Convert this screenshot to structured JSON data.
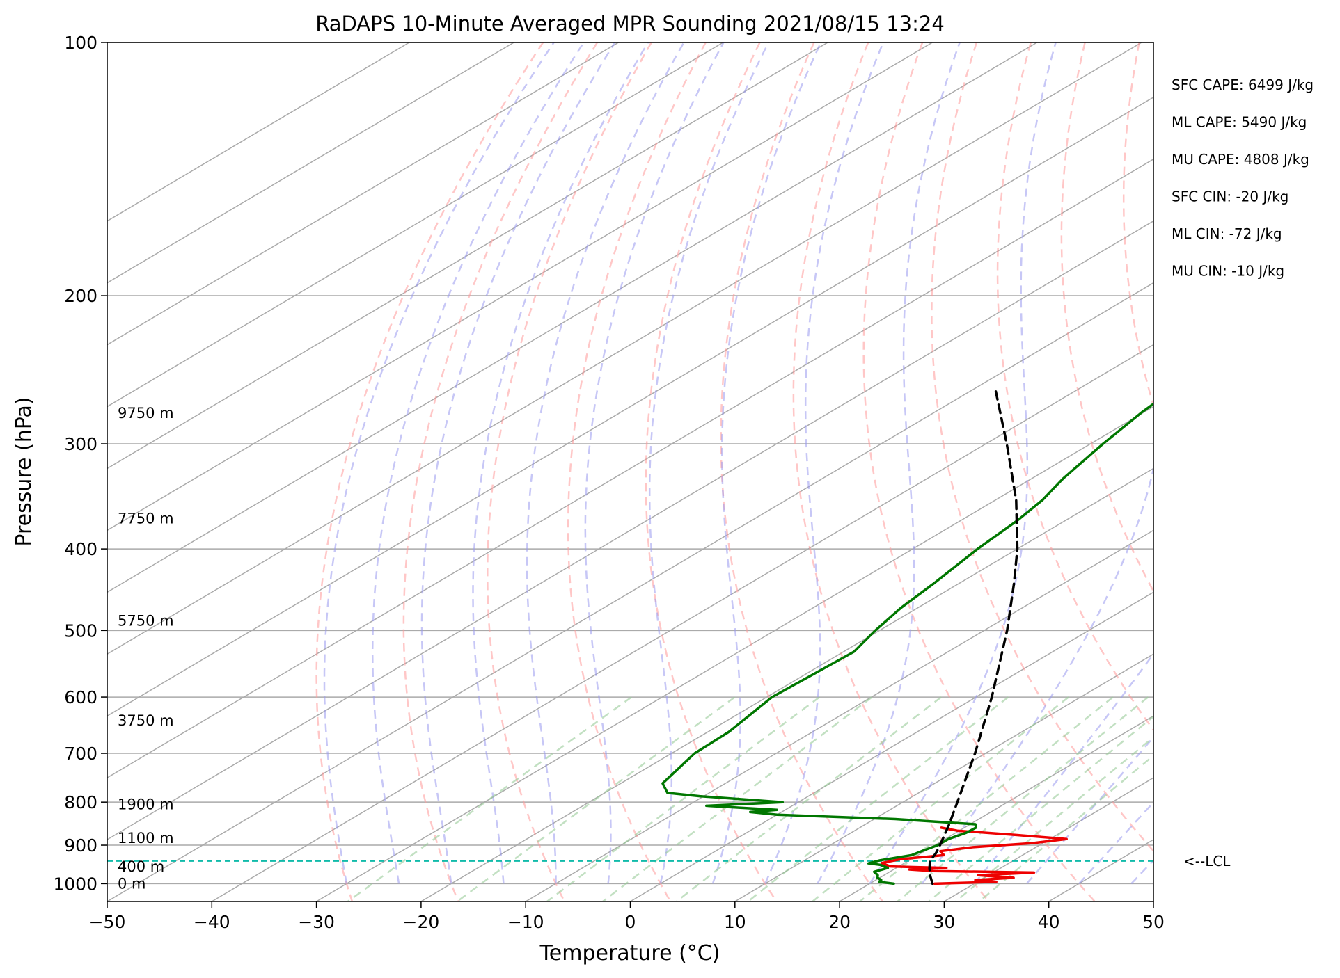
{
  "chart_data": {
    "type": "line",
    "subtype": "skew-t log-p",
    "title": "RaDAPS 10-Minute Averaged MPR Sounding 2021/08/15 13:24",
    "xlabel": "Temperature (°C)",
    "ylabel": "Pressure (hPa)",
    "xlim": [
      -50,
      50
    ],
    "ylim": [
      1050,
      100
    ],
    "y_scale": "log",
    "grid": true,
    "x_ticks": [
      -50,
      -40,
      -30,
      -20,
      -10,
      0,
      10,
      20,
      30,
      40,
      50
    ],
    "y_ticks": [
      100,
      200,
      300,
      400,
      500,
      600,
      700,
      800,
      900,
      1000
    ],
    "height_labels": [
      {
        "label": "0 m",
        "p": 1000
      },
      {
        "label": "400 m",
        "p": 955
      },
      {
        "label": "1100 m",
        "p": 883
      },
      {
        "label": "1900 m",
        "p": 805
      },
      {
        "label": "3750 m",
        "p": 640
      },
      {
        "label": "5750 m",
        "p": 487
      },
      {
        "label": "7750 m",
        "p": 368
      },
      {
        "label": "9750 m",
        "p": 276
      }
    ],
    "indices": [
      {
        "label": "SFC CAPE: 6499 J/kg"
      },
      {
        "label": "ML CAPE: 5490 J/kg"
      },
      {
        "label": "MU CAPE: 4808 J/kg"
      },
      {
        "label": "SFC CIN: -20 J/kg"
      },
      {
        "label": "ML CIN: -72 J/kg"
      },
      {
        "label": "MU CIN: -10 J/kg"
      }
    ],
    "lcl": {
      "label": "<--LCL",
      "p": 940
    },
    "colors": {
      "temperature": "#ee0000",
      "dewpoint": "#007700",
      "parcel": "#000000",
      "lcl": "#11bbaa",
      "dry_adiabats": "#ff9999",
      "moist_adiabats": "#9999ee",
      "mixing_ratio": "#99cc99",
      "isotherms": "#aaaaaa"
    },
    "series": [
      {
        "name": "temperature",
        "points": [
          {
            "p": 1000,
            "t": 26.2
          },
          {
            "p": 995,
            "t": 31.8
          },
          {
            "p": 990,
            "t": 29.5
          },
          {
            "p": 984,
            "t": 32.8
          },
          {
            "p": 977,
            "t": 29.0
          },
          {
            "p": 970,
            "t": 33.9
          },
          {
            "p": 966,
            "t": 24.0
          },
          {
            "p": 962,
            "t": 21.5
          },
          {
            "p": 958,
            "t": 24.8
          },
          {
            "p": 954,
            "t": 19.2
          },
          {
            "p": 945,
            "t": 17.8
          },
          {
            "p": 935,
            "t": 19.0
          },
          {
            "p": 925,
            "t": 22.5
          },
          {
            "p": 915,
            "t": 21.5
          },
          {
            "p": 905,
            "t": 24.0
          },
          {
            "p": 895,
            "t": 29.0
          },
          {
            "p": 885,
            "t": 31.6
          },
          {
            "p": 875,
            "t": 26.0
          },
          {
            "p": 865,
            "t": 19.8
          },
          {
            "p": 858,
            "t": 17.8
          }
        ]
      },
      {
        "name": "dewpoint",
        "points": [
          {
            "p": 1000,
            "t": 22.3
          },
          {
            "p": 995,
            "t": 20.6
          },
          {
            "p": 990,
            "t": 20.5
          },
          {
            "p": 984,
            "t": 19.8
          },
          {
            "p": 977,
            "t": 19.4
          },
          {
            "p": 968,
            "t": 18.5
          },
          {
            "p": 958,
            "t": 19.2
          },
          {
            "p": 950,
            "t": 18.0
          },
          {
            "p": 946,
            "t": 16.6
          },
          {
            "p": 938,
            "t": 17.2
          },
          {
            "p": 925,
            "t": 19.4
          },
          {
            "p": 912,
            "t": 19.8
          },
          {
            "p": 900,
            "t": 20.3
          },
          {
            "p": 885,
            "t": 20.3
          },
          {
            "p": 870,
            "t": 21.0
          },
          {
            "p": 858,
            "t": 21.1
          },
          {
            "p": 850,
            "t": 20.5
          },
          {
            "p": 838,
            "t": 12.0
          },
          {
            "p": 828,
            "t": 0.0
          },
          {
            "p": 822,
            "t": -3.0
          },
          {
            "p": 817,
            "t": -0.8
          },
          {
            "p": 808,
            "t": -8.2
          },
          {
            "p": 800,
            "t": -1.5
          },
          {
            "p": 787,
            "t": -10.4
          },
          {
            "p": 780,
            "t": -14.0
          },
          {
            "p": 760,
            "t": -16.0
          },
          {
            "p": 700,
            "t": -17.8
          },
          {
            "p": 660,
            "t": -18.0
          },
          {
            "p": 600,
            "t": -19.5
          },
          {
            "p": 530,
            "t": -19.0
          },
          {
            "p": 500,
            "t": -20.4
          },
          {
            "p": 470,
            "t": -21.6
          },
          {
            "p": 440,
            "t": -22.4
          },
          {
            "p": 400,
            "t": -23.8
          },
          {
            "p": 370,
            "t": -24.6
          },
          {
            "p": 350,
            "t": -25.5
          },
          {
            "p": 330,
            "t": -27.0
          },
          {
            "p": 300,
            "t": -28.8
          },
          {
            "p": 275,
            "t": -30.2
          },
          {
            "p": 260,
            "t": -30.8
          }
        ]
      },
      {
        "name": "parcel",
        "points": [
          {
            "p": 1000,
            "t": 26.0
          },
          {
            "p": 980,
            "t": 24.6
          },
          {
            "p": 960,
            "t": 23.3
          },
          {
            "p": 940,
            "t": 22.1
          },
          {
            "p": 920,
            "t": 21.4
          },
          {
            "p": 900,
            "t": 20.5
          },
          {
            "p": 850,
            "t": 18.0
          },
          {
            "p": 800,
            "t": 15.2
          },
          {
            "p": 700,
            "t": 9.0
          },
          {
            "p": 600,
            "t": 1.5
          },
          {
            "p": 500,
            "t": -7.8
          },
          {
            "p": 440,
            "t": -14.7
          },
          {
            "p": 400,
            "t": -20.0
          },
          {
            "p": 350,
            "t": -28.0
          },
          {
            "p": 300,
            "t": -38.0
          },
          {
            "p": 260,
            "t": -47.5
          }
        ]
      }
    ]
  }
}
